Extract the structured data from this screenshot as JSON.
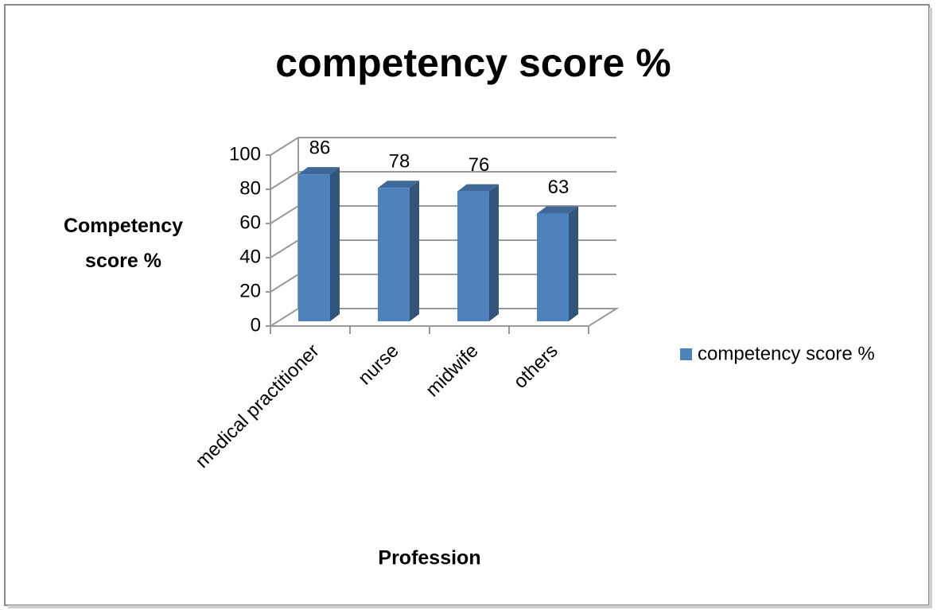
{
  "chart_data": {
    "type": "bar3d",
    "title": "competency score %",
    "x_label": "Profession",
    "y_label": "Competency score %",
    "categories": [
      "medical practitioner",
      "nurse",
      "midwife",
      "others"
    ],
    "series": [
      {
        "name": "competency score %",
        "color": "#4f81bd",
        "values": [
          86,
          78,
          76,
          63
        ]
      }
    ],
    "ylim": [
      0,
      100
    ],
    "yticks": [
      0,
      20,
      40,
      60,
      80,
      100
    ],
    "grid": true,
    "legend": "right"
  }
}
